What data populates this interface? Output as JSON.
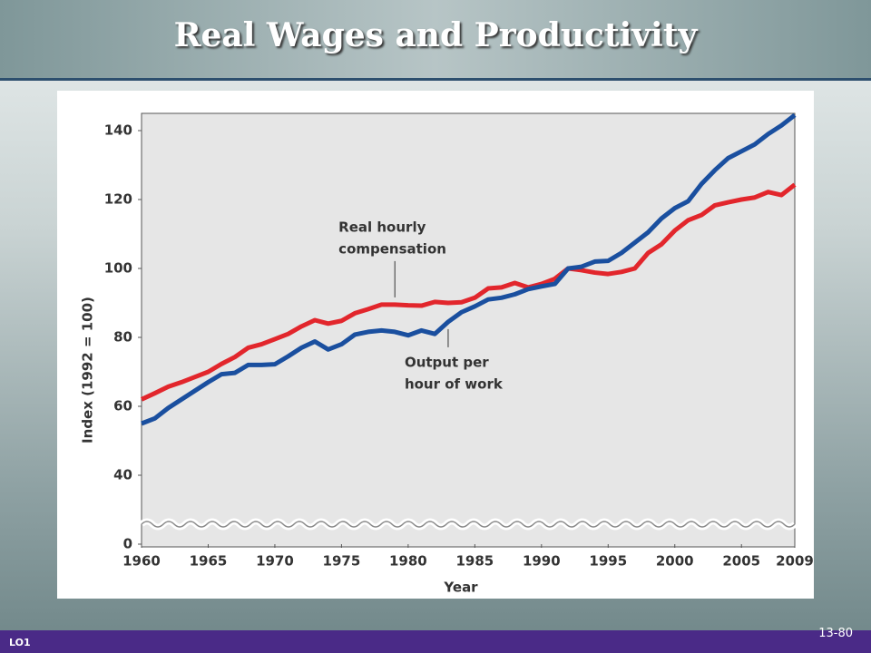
{
  "slide": {
    "footer_left": "LO1",
    "page_number": "13-80"
  },
  "chart_data": {
    "type": "line",
    "title": "Real Wages and Productivity",
    "x_label": "Year",
    "y_label": "Index (1992 = 100)",
    "x": [
      1960,
      1961,
      1962,
      1963,
      1964,
      1965,
      1966,
      1967,
      1968,
      1969,
      1970,
      1971,
      1972,
      1973,
      1974,
      1975,
      1976,
      1977,
      1978,
      1979,
      1980,
      1981,
      1982,
      1983,
      1984,
      1985,
      1986,
      1987,
      1988,
      1989,
      1990,
      1991,
      1992,
      1993,
      1994,
      1995,
      1996,
      1997,
      1998,
      1999,
      2000,
      2001,
      2002,
      2003,
      2004,
      2005,
      2006,
      2007,
      2008,
      2009
    ],
    "series": [
      {
        "name": "Real hourly compensation",
        "color": "#e2262c",
        "values": [
          62,
          63.8,
          65.7,
          67,
          68.5,
          70,
          72.3,
          74.3,
          77,
          78,
          79.5,
          81,
          83.2,
          85,
          84,
          84.8,
          87,
          88.2,
          89.5,
          89.5,
          89.3,
          89.2,
          90.3,
          90,
          90.2,
          91.5,
          94.2,
          94.5,
          95.8,
          94.5,
          95.5,
          97,
          100,
          99.5,
          98.8,
          98.4,
          99,
          100,
          104.5,
          107,
          111,
          114,
          115.5,
          118.3,
          119.2,
          120,
          120.6,
          122.2,
          121.3,
          124.3
        ]
      },
      {
        "name": "Output per hour of work",
        "color": "#1a4f9f",
        "values": [
          55,
          56.5,
          59.5,
          62,
          64.5,
          67,
          69.3,
          69.7,
          72,
          72,
          72.2,
          74.5,
          77,
          78.8,
          76.5,
          78,
          80.8,
          81.6,
          82,
          81.6,
          80.6,
          82,
          81,
          84.5,
          87.3,
          89,
          91,
          91.5,
          92.5,
          94,
          94.8,
          95.5,
          100,
          100.5,
          102,
          102.2,
          104.5,
          107.5,
          110.5,
          114.5,
          117.5,
          119.5,
          124.5,
          128.5,
          132,
          134,
          136,
          139,
          141.5,
          144.5
        ]
      }
    ],
    "annotations": [
      {
        "lines": [
          "Real hourly",
          "compensation"
        ],
        "series": 0,
        "x": 1979
      },
      {
        "lines": [
          "Output per",
          "hour of work"
        ],
        "series": 1,
        "x": 1983
      }
    ],
    "xlim": [
      1960,
      2009
    ],
    "xticks": [
      1960,
      1965,
      1970,
      1975,
      1980,
      1985,
      1990,
      1995,
      2000,
      2005,
      2009
    ],
    "ylim": [
      0,
      145
    ],
    "yticks": [
      0,
      40,
      60,
      80,
      100,
      120,
      140
    ],
    "ybreak": 40,
    "grid": false
  }
}
